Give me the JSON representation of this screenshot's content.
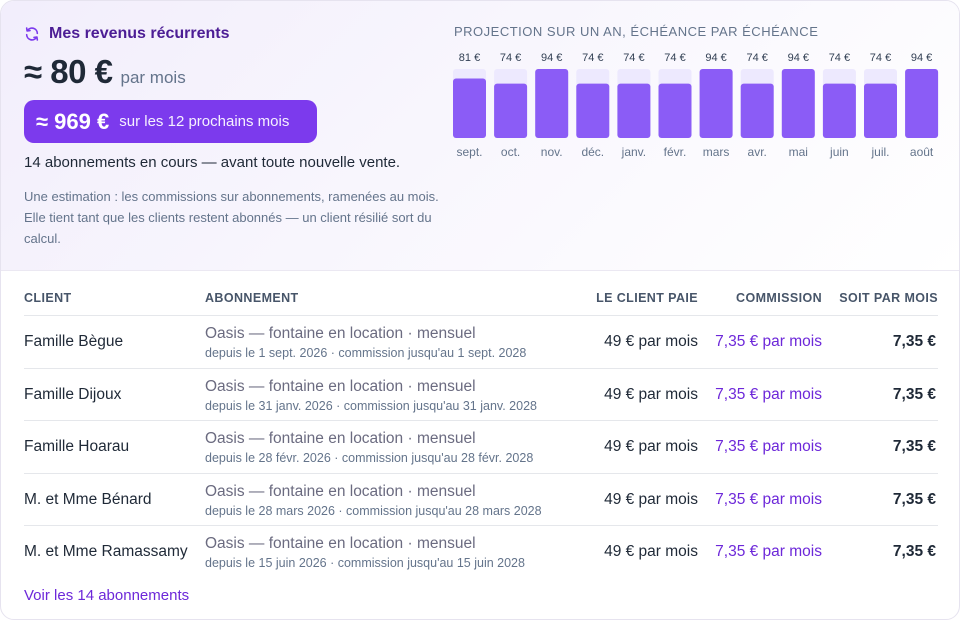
{
  "summary": {
    "title": "Mes revenus récurrents",
    "monthly_amount": "≈ 80 €",
    "monthly_unit": "par mois",
    "yearly_amount": "≈ 969 €",
    "yearly_label": "sur les 12 prochains mois",
    "subscriptions_line": "14 abonnements en cours — avant toute nouvelle vente.",
    "note": "Une estimation : les commissions sur abonnements, ramenées au mois. Elle tient tant que les clients restent abonnés — un client résilié sort du calcul."
  },
  "projection": {
    "title": "PROJECTION SUR UN AN, ÉCHÉANCE PAR ÉCHÉANCE"
  },
  "chart_data": {
    "type": "bar",
    "title": "PROJECTION SUR UN AN, ÉCHÉANCE PAR ÉCHÉANCE",
    "categories": [
      "sept.",
      "oct.",
      "nov.",
      "déc.",
      "janv.",
      "févr.",
      "mars",
      "avr.",
      "mai",
      "juin",
      "juil.",
      "août"
    ],
    "values": [
      81,
      74,
      94,
      74,
      74,
      74,
      94,
      74,
      94,
      74,
      74,
      94
    ],
    "value_labels": [
      "81 €",
      "74 €",
      "94 €",
      "74 €",
      "74 €",
      "74 €",
      "94 €",
      "74 €",
      "94 €",
      "74 €",
      "74 €",
      "94 €"
    ],
    "ylim": [
      0,
      94
    ],
    "grid": false,
    "colors": {
      "bar": "#8b5cf6",
      "track": "#ede9fe"
    }
  },
  "table": {
    "headers": {
      "client": "CLIENT",
      "plan": "ABONNEMENT",
      "pays": "LE CLIENT PAIE",
      "commission": "COMMISSION",
      "per_month": "SOIT PAR MOIS"
    },
    "rows": [
      {
        "client": "Famille Bègue",
        "plan": "Oasis — fontaine en location · mensuel",
        "since": "depuis le 1 sept. 2026 · commission jusqu'au 1 sept. 2028",
        "pays": "49 € par mois",
        "commission": "7,35 € par mois",
        "per_month": "7,35 €"
      },
      {
        "client": "Famille Dijoux",
        "plan": "Oasis — fontaine en location · mensuel",
        "since": "depuis le 31 janv. 2026 · commission jusqu'au 31 janv. 2028",
        "pays": "49 € par mois",
        "commission": "7,35 € par mois",
        "per_month": "7,35 €"
      },
      {
        "client": "Famille Hoarau",
        "plan": "Oasis — fontaine en location · mensuel",
        "since": "depuis le 28 févr. 2026 · commission jusqu'au 28 févr. 2028",
        "pays": "49 € par mois",
        "commission": "7,35 € par mois",
        "per_month": "7,35 €"
      },
      {
        "client": "M. et Mme Bénard",
        "plan": "Oasis — fontaine en location · mensuel",
        "since": "depuis le 28 mars 2026 · commission jusqu'au 28 mars 2028",
        "pays": "49 € par mois",
        "commission": "7,35 € par mois",
        "per_month": "7,35 €"
      },
      {
        "client": "M. et Mme Ramassamy",
        "plan": "Oasis — fontaine en location · mensuel",
        "since": "depuis le 15 juin 2026 · commission jusqu'au 15 juin 2028",
        "pays": "49 € par mois",
        "commission": "7,35 € par mois",
        "per_month": "7,35 €"
      }
    ],
    "see_all": "Voir les 14 abonnements"
  },
  "icons": {
    "title_icon": "refresh-icon"
  },
  "colors": {
    "accent": "#7c3aed",
    "accent_dark": "#4c1d95",
    "commission_text": "#6d28d9"
  }
}
